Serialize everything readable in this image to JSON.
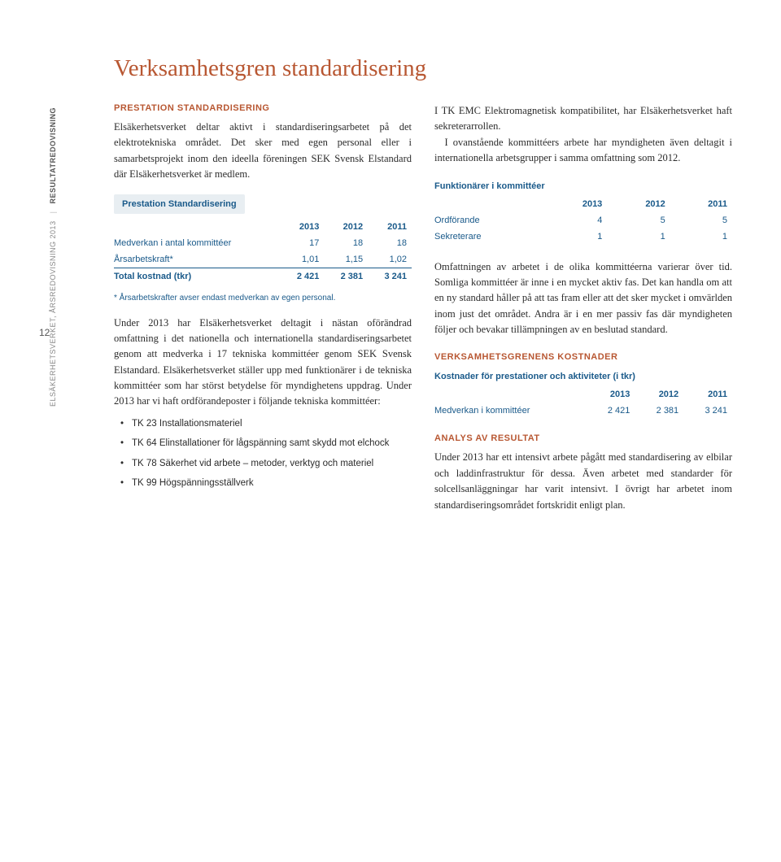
{
  "page_number": "12",
  "side_rail": {
    "left": "ELSÄKERHETSVERKET, ÅRSREDOVISNING 2013",
    "right": "RESULTATREDOVISNING"
  },
  "title": "Verksamhetsgren standardisering",
  "left": {
    "subhead": "Prestation Standardisering",
    "para1": "Elsäkerhetsverket deltar aktivt i standardiseringsarbetet på det elektrotekniska området. Det sker med egen personal eller i samarbetsprojekt inom den ideella föreningen SEK Svensk Elstandard där Elsäkerhetsverket är medlem.",
    "table1": {
      "title": "Prestation Standardisering",
      "cols": [
        "",
        "2013",
        "2012",
        "2011"
      ],
      "rows": [
        [
          "Medverkan i antal kommittéer",
          "17",
          "18",
          "18"
        ],
        [
          "Årsarbetskraft*",
          "1,01",
          "1,15",
          "1,02"
        ]
      ],
      "total": [
        "Total kostnad (tkr)",
        "2 421",
        "2 381",
        "3 241"
      ],
      "footnote": "* Årsarbetskrafter avser endast medverkan av egen personal."
    },
    "para2": "Under 2013 har Elsäkerhetsverket deltagit i nästan oförändrad omfattning i det nationella och internationella standardiseringsarbetet genom att medverka i 17 tekniska kommittéer genom SEK Svensk Elstandard. Elsäkerhetsverket ställer upp med funktionärer i de tekniska kommittéer som har störst betydelse för myndighetens uppdrag. Under 2013 har vi haft ordförandeposter i följande tekniska kommittéer:",
    "bullets": [
      "TK 23 Installationsmateriel",
      "TK 64 Elinstallationer för lågspänning samt skydd mot elchock",
      "TK 78 Säkerhet vid arbete – metoder, verktyg och materiel",
      "TK 99 Högspänningsställverk"
    ]
  },
  "right": {
    "para_top": "I TK EMC Elektromagnetisk kompatibilitet, har Elsäkerhetsverket haft sekreterarrollen.",
    "para_top2": "I ovanstående kommittéers arbete har myndigheten även deltagit i internationella arbetsgrupper i samma omfattning som 2012.",
    "func_head": "Funktionärer i kommittéer",
    "table2": {
      "cols": [
        "",
        "2013",
        "2012",
        "2011"
      ],
      "rows": [
        [
          "Ordförande",
          "4",
          "5",
          "5"
        ],
        [
          "Sekreterare",
          "1",
          "1",
          "1"
        ]
      ]
    },
    "para_mid": "Omfattningen av arbetet i de olika kommittéerna varierar över tid. Somliga kommittéer är inne i en mycket aktiv fas. Det kan handla om att en ny standard håller på att tas fram eller att det sker mycket i omvärlden inom just det området. Andra är i en mer passiv fas där myndigheten följer och bevakar tillämpningen av en beslutad standard.",
    "kost_head": "Verksamhetsgrenens kostnader",
    "kost_sub": "Kostnader för prestationer och aktiviteter (i tkr)",
    "table3": {
      "cols": [
        "",
        "2013",
        "2012",
        "2011"
      ],
      "rows": [
        [
          "Medverkan i kommittéer",
          "2 421",
          "2 381",
          "3 241"
        ]
      ]
    },
    "analys_head": "Analys av resultat",
    "para_analys": "Under 2013 har ett intensivt arbete pågått med standardisering av elbilar och laddinfrastruktur för dessa. Även arbetet med standarder för solcellsanläggningar har varit intensivt. I övrigt har arbetet inom standardiseringsområdet fortskridit enligt plan."
  }
}
